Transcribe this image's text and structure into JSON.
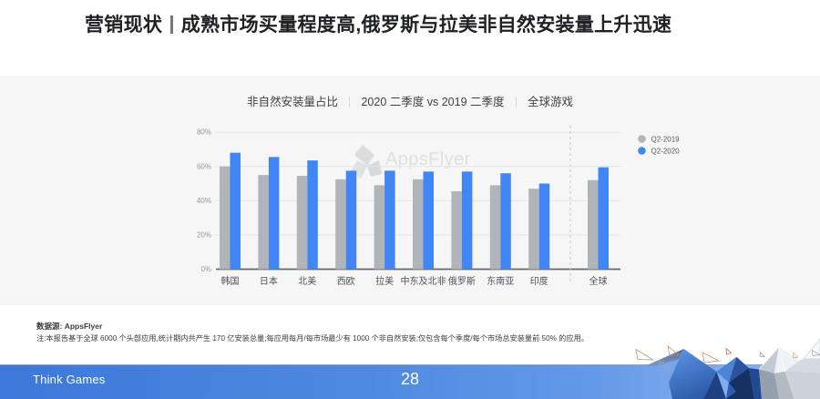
{
  "slide": {
    "title_prefix": "营销现状",
    "title_rest": "成熟市场买量程度高,俄罗斯与拉美非自然安装量上升迅速"
  },
  "chart_header": {
    "part1": "非自然安装量占比",
    "part2": "2020 二季度 vs 2019 二季度",
    "part3": "全球游戏",
    "separator": "｜"
  },
  "chart_data": {
    "type": "bar",
    "title": "非自然安装量占比 ｜ 2020 二季度 vs 2019 二季度 ｜ 全球游戏",
    "categories": [
      "韩国",
      "日本",
      "北美",
      "西欧",
      "拉美",
      "中东及北非",
      "俄罗斯",
      "东南亚",
      "印度",
      "全球"
    ],
    "series": [
      {
        "name": "Q2-2019",
        "color": "#b1b4b8",
        "values": [
          60,
          55,
          54.5,
          52.5,
          49,
          52.5,
          45.5,
          49,
          47,
          52
        ]
      },
      {
        "name": "Q2-2020",
        "color": "#4285f4",
        "values": [
          68,
          65.5,
          63.5,
          57.5,
          57.5,
          57,
          57,
          56,
          50,
          59.5
        ]
      }
    ],
    "ylim": [
      0,
      80
    ],
    "ytick_labels": [
      "0%",
      "20%",
      "40%",
      "60%",
      "80%"
    ],
    "grid": true,
    "legend_position": "top-right",
    "separator_before_category": "全球",
    "watermark": "AppsFlyer"
  },
  "notes": {
    "source": "数据源: AppsFlyer",
    "note": "注:本报告基于全球 6000 个头部应用,统计期内共产生 170 亿安装总量;每应用每月/每市场最少有 1000 个非自然安装;仅包含每个季度/每个市场总安装量前 50% 的应用。"
  },
  "footer": {
    "brand": "Think Games",
    "page": "28"
  }
}
